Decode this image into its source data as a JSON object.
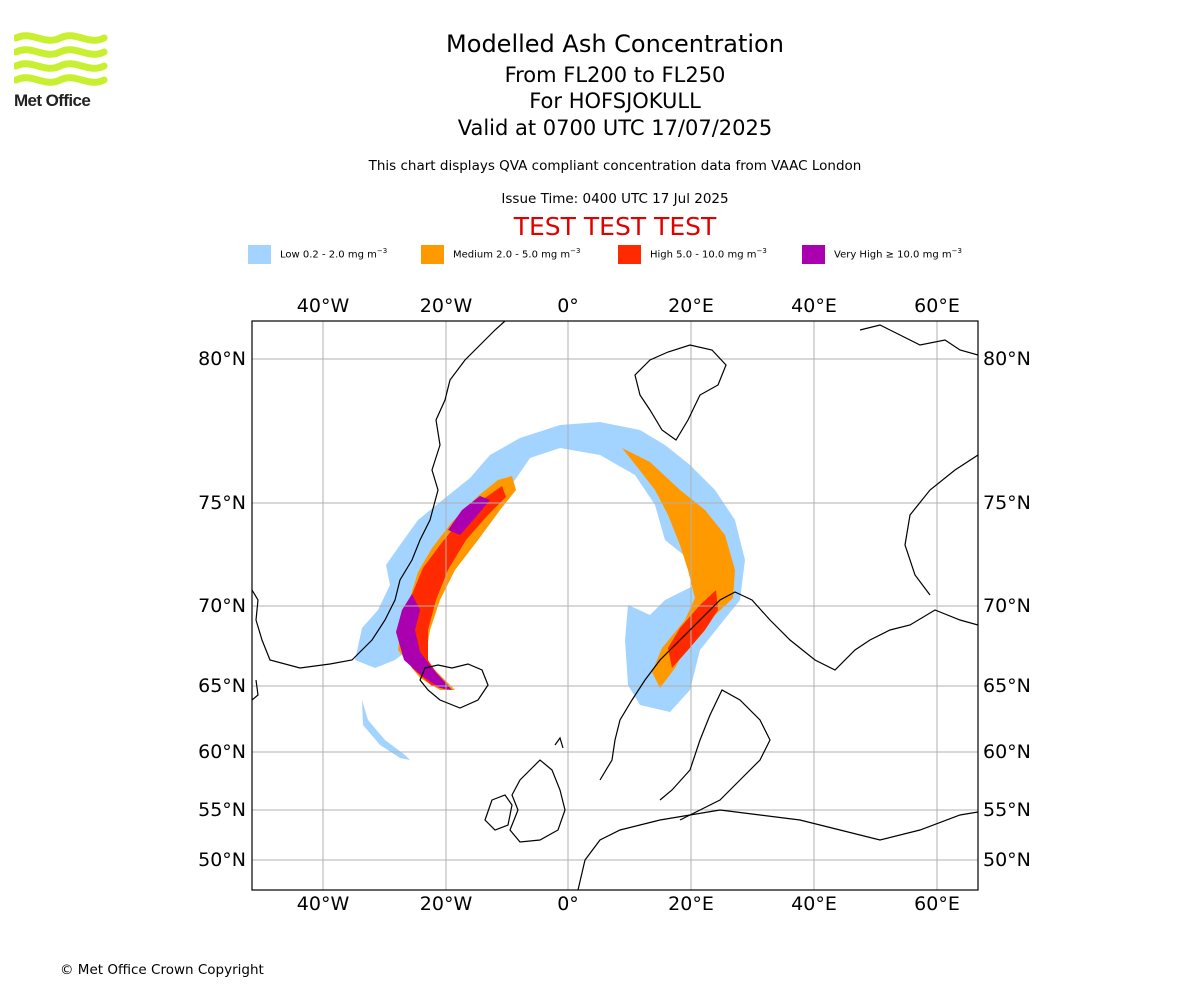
{
  "branding": {
    "logo_text": "Met Office",
    "logo_color": "#c8f031"
  },
  "title": {
    "line1": "Modelled Ash Concentration",
    "line2": "From FL200 to FL250",
    "line3": "For HOFSJOKULL",
    "line4": "Valid at 0700 UTC 17/07/2025"
  },
  "subtitle": "This chart displays QVA compliant concentration data from VAAC London",
  "issue_time": "Issue Time: 0400 UTC 17 Jul 2025",
  "test_banner": {
    "text": "TEST TEST TEST",
    "color": "#e00000"
  },
  "legend": [
    {
      "label": "Low 0.2 - 2.0 mg m",
      "exp": "−3",
      "color": "#a3d4ff"
    },
    {
      "label": "Medium 2.0 - 5.0 mg m",
      "exp": "−3",
      "color": "#ff9900"
    },
    {
      "label": "High 5.0 - 10.0 mg m",
      "exp": "−3",
      "color": "#ff2a00"
    },
    {
      "label": "Very High  ≥  10.0 mg m",
      "exp": "−3",
      "color": "#aa00b0"
    }
  ],
  "map": {
    "lon_ticks": [
      "40°W",
      "20°W",
      "0°",
      "20°E",
      "40°E",
      "60°E"
    ],
    "lat_ticks": [
      "80°N",
      "75°N",
      "70°N",
      "65°N",
      "60°N",
      "55°N",
      "50°N"
    ],
    "grid": true,
    "coastline_color": "#000000",
    "gridline_color": "#b0b0b0"
  },
  "copyright": "© Met Office Crown Copyright"
}
